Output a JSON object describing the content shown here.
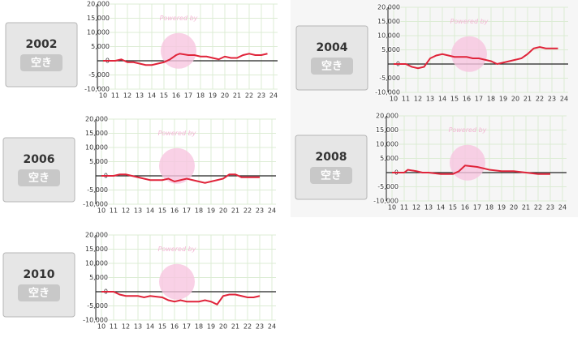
{
  "watermark": "Powered by",
  "panels": [
    {
      "year": "2002",
      "status": "空き"
    },
    {
      "year": "2004",
      "status": "空き"
    },
    {
      "year": "2006",
      "status": "空き"
    },
    {
      "year": "2008",
      "status": "空き"
    },
    {
      "year": "2010",
      "status": "空き"
    }
  ],
  "chart_data": [
    {
      "type": "line",
      "color": "#e0243a",
      "xlim": [
        10,
        24
      ],
      "xticks": [
        10,
        11,
        12,
        13,
        14,
        15,
        16,
        17,
        18,
        19,
        20,
        21,
        22,
        23,
        24
      ],
      "ylim": [
        -10000,
        20000
      ],
      "yticks": [
        {
          "value": -10000,
          "label": "-10,000"
        },
        {
          "value": -5000,
          "label": "-5,000"
        },
        0,
        {
          "value": 5000,
          "label": "5,000"
        },
        {
          "value": 10000,
          "label": "10,000"
        },
        {
          "value": 15000,
          "label": "15,000"
        },
        {
          "value": 20000,
          "label": "20,000"
        }
      ],
      "grid": true,
      "x": [
        10,
        11,
        11.5,
        12,
        12.5,
        13,
        13.5,
        14,
        14.5,
        15,
        15.5,
        16,
        16.3,
        17,
        17.5,
        18,
        18.5,
        19,
        19.5,
        20,
        20.5,
        21,
        21.5,
        22,
        22.5,
        23,
        23.5
      ],
      "values": [
        0,
        0,
        500,
        -500,
        -500,
        -1000,
        -1500,
        -1500,
        -1000,
        -500,
        500,
        2000,
        2500,
        2000,
        2000,
        1500,
        1500,
        1000,
        500,
        1500,
        1000,
        1000,
        2000,
        2500,
        2000,
        2000,
        2500
      ]
    },
    {
      "type": "line",
      "color": "#e0243a",
      "xlim": [
        10,
        24
      ],
      "xticks": [
        10,
        11,
        12,
        13,
        14,
        15,
        16,
        17,
        18,
        19,
        20,
        21,
        22,
        23,
        24
      ],
      "ylim": [
        -10000,
        20000
      ],
      "yticks": [
        {
          "value": -10000,
          "label": "-10,000"
        },
        {
          "value": -5000,
          "label": "-5,000"
        },
        0,
        {
          "value": 5000,
          "label": "5,000"
        },
        {
          "value": 10000,
          "label": "10,000"
        },
        {
          "value": 15000,
          "label": "15,000"
        },
        {
          "value": 20000,
          "label": "20,000"
        }
      ],
      "grid": true,
      "x": [
        10,
        11,
        11.5,
        12,
        12.5,
        13,
        13.5,
        14,
        14.5,
        15,
        15.5,
        16,
        16.5,
        17,
        17.5,
        18,
        18.5,
        19,
        19.5,
        20,
        20.5,
        21,
        21.5,
        22,
        22.5,
        23.5
      ],
      "values": [
        0,
        0,
        -1000,
        -1500,
        -1000,
        2000,
        3000,
        3500,
        3000,
        2500,
        2500,
        2500,
        2000,
        2000,
        1500,
        1000,
        0,
        500,
        1000,
        1500,
        2000,
        3500,
        5500,
        6000,
        5500,
        5500
      ]
    },
    {
      "type": "line",
      "color": "#e0243a",
      "xlim": [
        10,
        24
      ],
      "xticks": [
        10,
        11,
        12,
        13,
        14,
        15,
        16,
        17,
        18,
        19,
        20,
        21,
        22,
        23,
        24
      ],
      "ylim": [
        -10000,
        20000
      ],
      "yticks": [
        {
          "value": -10000,
          "label": "-10,000"
        },
        {
          "value": -5000,
          "label": "-5,000"
        },
        0,
        {
          "value": 5000,
          "label": "5,000"
        },
        {
          "value": 10000,
          "label": "10,000"
        },
        {
          "value": 15000,
          "label": "15,000"
        },
        {
          "value": 20000,
          "label": "20,000"
        }
      ],
      "grid": true,
      "x": [
        10,
        11,
        11.5,
        12,
        12.5,
        13,
        13.5,
        14,
        15,
        15.5,
        16,
        16.5,
        17,
        17.5,
        18,
        18.5,
        19,
        19.5,
        20,
        20.5,
        21,
        21.5,
        23
      ],
      "values": [
        0,
        0,
        500,
        500,
        0,
        -500,
        -1000,
        -1500,
        -1500,
        -1000,
        -2000,
        -1500,
        -1000,
        -1500,
        -2000,
        -2500,
        -2000,
        -1500,
        -1000,
        500,
        500,
        -500,
        -500
      ]
    },
    {
      "type": "line",
      "color": "#e0243a",
      "xlim": [
        10,
        24
      ],
      "xticks": [
        10,
        11,
        12,
        13,
        14,
        15,
        16,
        17,
        18,
        19,
        20,
        21,
        22,
        23,
        24
      ],
      "ylim": [
        -10000,
        20000
      ],
      "yticks": [
        {
          "value": -10000,
          "label": "-10,000"
        },
        {
          "value": -5000,
          "label": "-5,000"
        },
        0,
        {
          "value": 5000,
          "label": "5,000"
        },
        {
          "value": 10000,
          "label": "10,000"
        },
        {
          "value": 15000,
          "label": "15,000"
        },
        {
          "value": 20000,
          "label": "20,000"
        }
      ],
      "grid": true,
      "x": [
        10,
        11,
        11.3,
        12,
        12.5,
        13,
        14,
        15,
        15.5,
        16,
        17,
        17.5,
        18,
        19,
        20,
        21,
        22,
        23
      ],
      "values": [
        0,
        0,
        1000,
        500,
        0,
        0,
        -500,
        -500,
        500,
        2500,
        2000,
        1500,
        1000,
        500,
        500,
        0,
        -500,
        -500
      ]
    },
    {
      "type": "line",
      "color": "#e0243a",
      "xlim": [
        10,
        24
      ],
      "xticks": [
        10,
        11,
        12,
        13,
        14,
        15,
        16,
        17,
        18,
        19,
        20,
        21,
        22,
        23,
        24
      ],
      "ylim": [
        -10000,
        20000
      ],
      "yticks": [
        {
          "value": -10000,
          "label": "-10,000"
        },
        {
          "value": -5000,
          "label": "-5,000"
        },
        0,
        {
          "value": 5000,
          "label": "5,000"
        },
        {
          "value": 10000,
          "label": "10,000"
        },
        {
          "value": 15000,
          "label": "15,000"
        },
        {
          "value": 20000,
          "label": "20,000"
        }
      ],
      "grid": true,
      "x": [
        10,
        11,
        11.5,
        12,
        13,
        13.5,
        14,
        15,
        15.5,
        16,
        16.5,
        17,
        18,
        18.5,
        19,
        19.5,
        20,
        20.5,
        21,
        21.5,
        22,
        22.5,
        23
      ],
      "values": [
        0,
        0,
        -1000,
        -1500,
        -1500,
        -2000,
        -1500,
        -2000,
        -3000,
        -3500,
        -3000,
        -3500,
        -3500,
        -3000,
        -3500,
        -4500,
        -1500,
        -1000,
        -1000,
        -1500,
        -2000,
        -2000,
        -1500
      ]
    }
  ]
}
